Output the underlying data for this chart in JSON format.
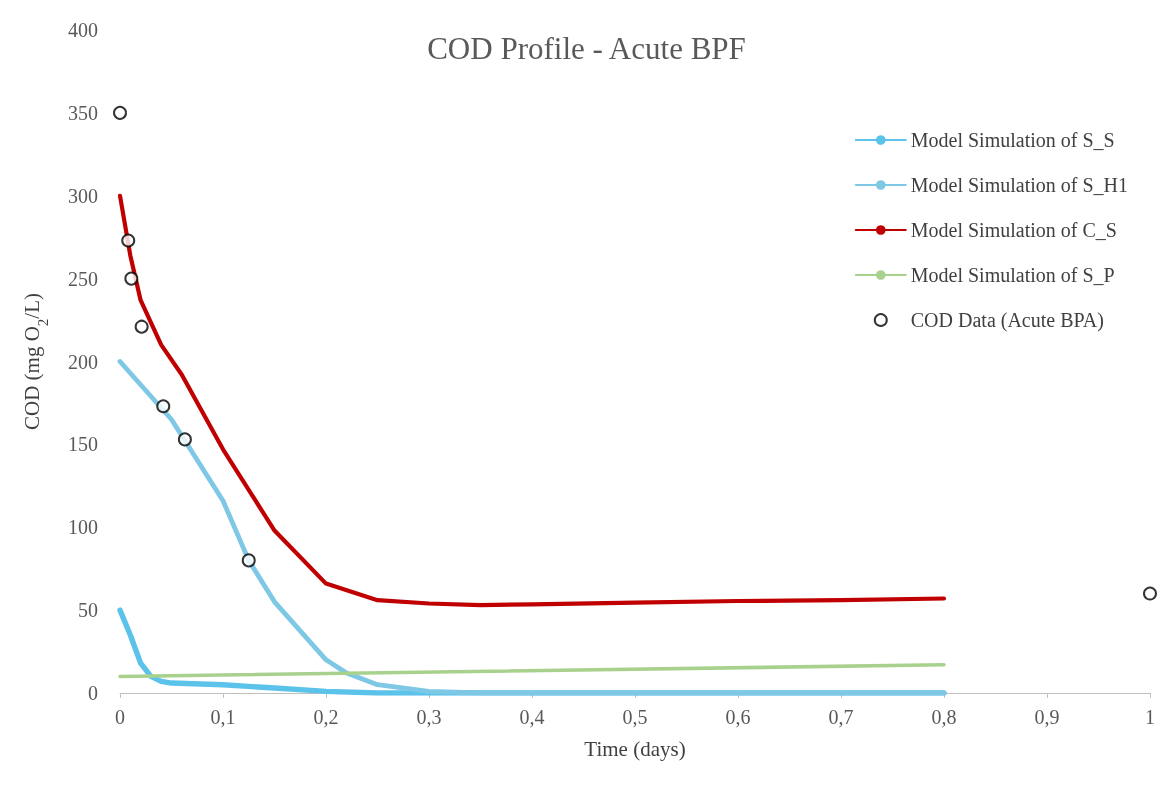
{
  "chart_data": {
    "type": "line",
    "title": "COD Profile - Acute BPF",
    "xlabel": "Time (days)",
    "ylabel": "COD (mg O$_{2}$/L)",
    "xlim": [
      0,
      1
    ],
    "xticks": [
      0,
      {
        "value": 0.1,
        "label": "0,1"
      },
      {
        "value": 0.2,
        "label": "0,2"
      },
      {
        "value": 0.3,
        "label": "0,3"
      },
      {
        "value": 0.4,
        "label": "0,4"
      },
      {
        "value": 0.5,
        "label": "0,5"
      },
      {
        "value": 0.6,
        "label": "0,6"
      },
      {
        "value": 0.7,
        "label": "0,7"
      },
      {
        "value": 0.8,
        "label": "0,8"
      },
      {
        "value": 0.9,
        "label": "0,9"
      },
      1
    ],
    "ylim": [
      0,
      400
    ],
    "yticks": [
      0,
      50,
      100,
      150,
      200,
      250,
      300,
      350,
      400
    ],
    "grid": false,
    "legend": "top right",
    "marker": "none",
    "line_style": "solid",
    "series": [
      {
        "name": "Model Simulation of S_S",
        "color": "#5bc3ea",
        "x": [
          0,
          0.01,
          0.02,
          0.03,
          0.04,
          0.05,
          0.1,
          0.15,
          0.2,
          0.25,
          0.3,
          0.8
        ],
        "values": [
          50,
          35,
          18,
          10,
          7,
          6,
          5,
          3,
          1,
          0,
          0,
          0
        ]
      },
      {
        "name": "Model Simulation of S_H1",
        "color": "#7ec8e6",
        "x": [
          0,
          0.05,
          0.1,
          0.125,
          0.15,
          0.2,
          0.22,
          0.25,
          0.3,
          0.35,
          0.8
        ],
        "values": [
          200,
          165,
          116,
          80,
          55,
          20,
          12,
          5,
          1,
          0,
          0
        ]
      },
      {
        "name": "Model Simulation of C_S",
        "color": "#c00000",
        "x": [
          0,
          0.01,
          0.02,
          0.04,
          0.06,
          0.1,
          0.15,
          0.2,
          0.25,
          0.3,
          0.35,
          0.4,
          0.5,
          0.6,
          0.7,
          0.8
        ],
        "values": [
          300,
          264,
          237,
          210,
          192,
          147,
          98,
          66,
          56,
          54,
          53,
          53.5,
          54.5,
          55.5,
          56,
          57
        ]
      },
      {
        "name": "Model Simulation of S_P",
        "color": "#a9d18e",
        "x": [
          0,
          0.8
        ],
        "values": [
          10,
          17
        ]
      },
      {
        "name": "COD Data (Acute BPA)",
        "type": "scatter",
        "marker": "circle",
        "color": "#000000",
        "x": [
          0,
          0.008,
          0.011,
          0.021,
          0.042,
          0.063,
          0.125,
          1
        ],
        "values": [
          350,
          273,
          250,
          221,
          173,
          153,
          80,
          60
        ]
      }
    ]
  }
}
